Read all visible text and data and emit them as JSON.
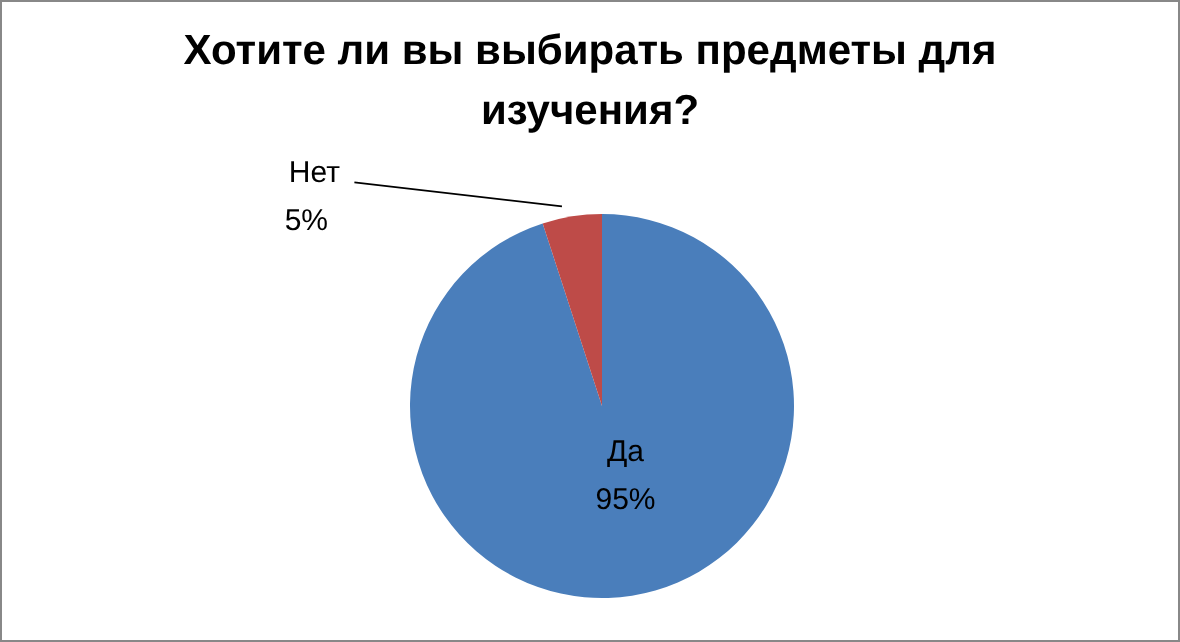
{
  "chart_data": {
    "type": "pie",
    "title": "Хотите ли вы выбирать предметы для изучения?",
    "categories": [
      "Да",
      "Нет"
    ],
    "values": [
      95,
      5
    ],
    "value_labels": [
      "95%",
      "5%"
    ],
    "colors": [
      "#4a7ebb",
      "#be4b48"
    ]
  }
}
